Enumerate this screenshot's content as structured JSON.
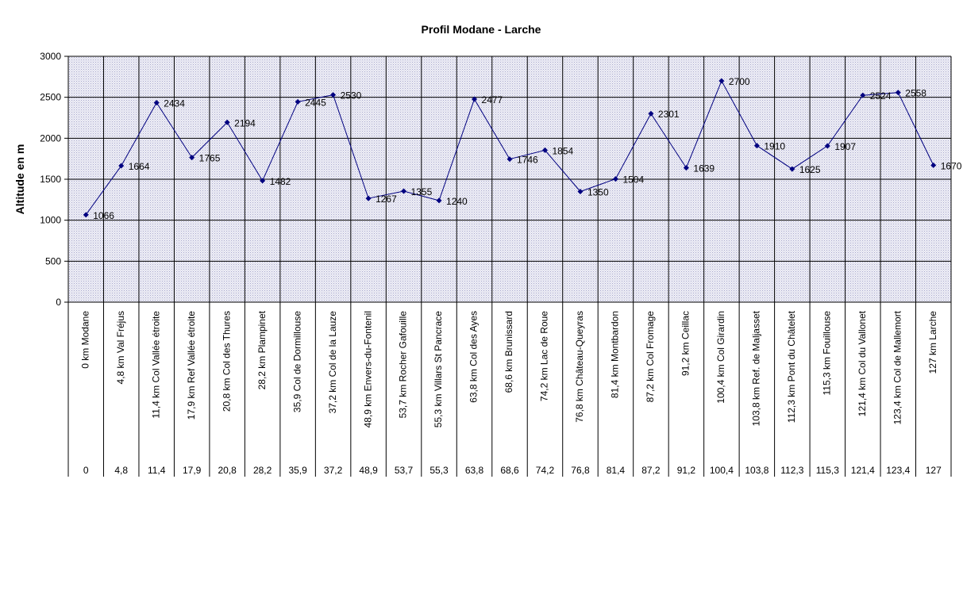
{
  "chart_data": {
    "type": "line",
    "title": "Profil Modane - Larche",
    "ylabel": "Altitude en m",
    "ylim": [
      0,
      3000
    ],
    "yticks": [
      0,
      500,
      1000,
      1500,
      2000,
      2500,
      3000
    ],
    "grid": true,
    "legend": "none",
    "series_color": "#000080",
    "plot_bg": "#e8e8f2",
    "categories": [
      "0 km Modane",
      "4,8 km Val Fréjus",
      "11,4 km Col Vallée étroite",
      "17,9 km Ref Vallée étroite",
      "20,8 km Col des Thures",
      "28,2 km Plampinet",
      "35,9 Col de Dormillouse",
      "37,2 km Col de la Lauze",
      "48,9 km Envers-du-Fontenil",
      "53,7 km Rocher Gafouille",
      "55,3 km Villars St Pancrace",
      "63,8 km Col des Ayes",
      "68,6 km Brunissard",
      "74,2 km Lac de Roue",
      "76,8 km Château-Queyras",
      "81,4 km Montbardon",
      "87,2 km Col Fromage",
      "91,2 km Ceillac",
      "100,4 km Col Girardin",
      "103,8 km Ref. de Maljasset",
      "112,3 km Pont du Châtelet",
      "115,3 km Fouillouse",
      "121,4 km Col du Vallonet",
      "123,4 km Col de Mallemort",
      "127 km Larche"
    ],
    "distances": [
      "0",
      "4,8",
      "11,4",
      "17,9",
      "20,8",
      "28,2",
      "35,9",
      "37,2",
      "48,9",
      "53,7",
      "55,3",
      "63,8",
      "68,6",
      "74,2",
      "76,8",
      "81,4",
      "87,2",
      "91,2",
      "100,4",
      "103,8",
      "112,3",
      "115,3",
      "121,4",
      "123,4",
      "127"
    ],
    "values": [
      1066,
      1664,
      2434,
      1765,
      2194,
      1482,
      2445,
      2530,
      1267,
      1355,
      1240,
      2477,
      1746,
      1854,
      1350,
      1504,
      2301,
      1639,
      2700,
      1910,
      1625,
      1907,
      2524,
      2558,
      1670
    ]
  }
}
